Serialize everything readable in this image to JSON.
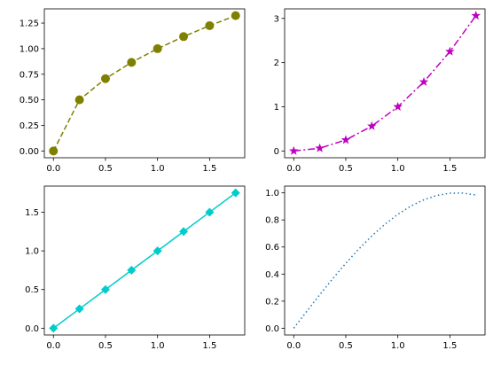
{
  "chart_data": [
    {
      "type": "line",
      "x": [
        0,
        0.25,
        0.5,
        0.75,
        1.0,
        1.25,
        1.5,
        1.75
      ],
      "series": [
        {
          "values": [
            0,
            0.5,
            0.7071,
            0.866,
            1.0,
            1.118,
            1.2247,
            1.3229
          ],
          "color": "#808000",
          "linestyle": "dashed",
          "marker": "circle"
        }
      ],
      "xlim": [
        -0.0875,
        1.8375
      ],
      "ylim": [
        -0.066,
        1.389
      ],
      "xticks": [
        0.0,
        0.5,
        1.0,
        1.5
      ],
      "yticks": [
        0.0,
        0.25,
        0.5,
        0.75,
        1.0,
        1.25
      ],
      "xtick_labels": [
        "0.0",
        "0.5",
        "1.0",
        "1.5"
      ],
      "ytick_labels": [
        "0.00",
        "0.25",
        "0.50",
        "0.75",
        "1.00",
        "1.25"
      ],
      "title": "",
      "xlabel": "",
      "ylabel": "",
      "grid": false
    },
    {
      "type": "line",
      "x": [
        0,
        0.25,
        0.5,
        0.75,
        1.0,
        1.25,
        1.5,
        1.75
      ],
      "series": [
        {
          "values": [
            0,
            0.0625,
            0.25,
            0.5625,
            1.0,
            1.5625,
            2.25,
            3.0625
          ],
          "color": "#bf00bf",
          "linestyle": "dashdot",
          "marker": "star"
        }
      ],
      "xlim": [
        -0.0875,
        1.8375
      ],
      "ylim": [
        -0.153,
        3.216
      ],
      "xticks": [
        0.0,
        0.5,
        1.0,
        1.5
      ],
      "yticks": [
        0,
        1,
        2,
        3
      ],
      "xtick_labels": [
        "0.0",
        "0.5",
        "1.0",
        "1.5"
      ],
      "ytick_labels": [
        "0",
        "1",
        "2",
        "3"
      ],
      "title": "",
      "xlabel": "",
      "ylabel": "",
      "grid": false
    },
    {
      "type": "line",
      "x": [
        0,
        0.25,
        0.5,
        0.75,
        1.0,
        1.25,
        1.5,
        1.75
      ],
      "series": [
        {
          "values": [
            0,
            0.25,
            0.5,
            0.75,
            1.0,
            1.25,
            1.5,
            1.75
          ],
          "color": "#00cccc",
          "linestyle": "solid",
          "marker": "diamond"
        }
      ],
      "xlim": [
        -0.0875,
        1.8375
      ],
      "ylim": [
        -0.0875,
        1.8375
      ],
      "xticks": [
        0.0,
        0.5,
        1.0,
        1.5
      ],
      "yticks": [
        0.0,
        0.5,
        1.0,
        1.5
      ],
      "xtick_labels": [
        "0.0",
        "0.5",
        "1.0",
        "1.5"
      ],
      "ytick_labels": [
        "0.0",
        "0.5",
        "1.0",
        "1.5"
      ],
      "title": "",
      "xlabel": "",
      "ylabel": "",
      "grid": false
    },
    {
      "type": "line",
      "x": [
        0,
        0.125,
        0.25,
        0.375,
        0.5,
        0.625,
        0.75,
        0.875,
        1.0,
        1.125,
        1.25,
        1.375,
        1.5,
        1.625,
        1.75
      ],
      "series": [
        {
          "values": [
            0,
            0.1247,
            0.2474,
            0.3663,
            0.4794,
            0.5851,
            0.6816,
            0.7675,
            0.8415,
            0.9023,
            0.949,
            0.9809,
            0.9975,
            0.9985,
            0.984
          ],
          "color": "#1f77b4",
          "linestyle": "dotted",
          "marker": "none"
        }
      ],
      "xlim": [
        -0.0875,
        1.8375
      ],
      "ylim": [
        -0.05,
        1.05
      ],
      "xticks": [
        0.0,
        0.5,
        1.0,
        1.5
      ],
      "yticks": [
        0.0,
        0.2,
        0.4,
        0.6,
        0.8,
        1.0
      ],
      "xtick_labels": [
        "0.0",
        "0.5",
        "1.0",
        "1.5"
      ],
      "ytick_labels": [
        "0.0",
        "0.2",
        "0.4",
        "0.6",
        "0.8",
        "1.0"
      ],
      "title": "",
      "xlabel": "",
      "ylabel": "",
      "grid": false
    }
  ]
}
